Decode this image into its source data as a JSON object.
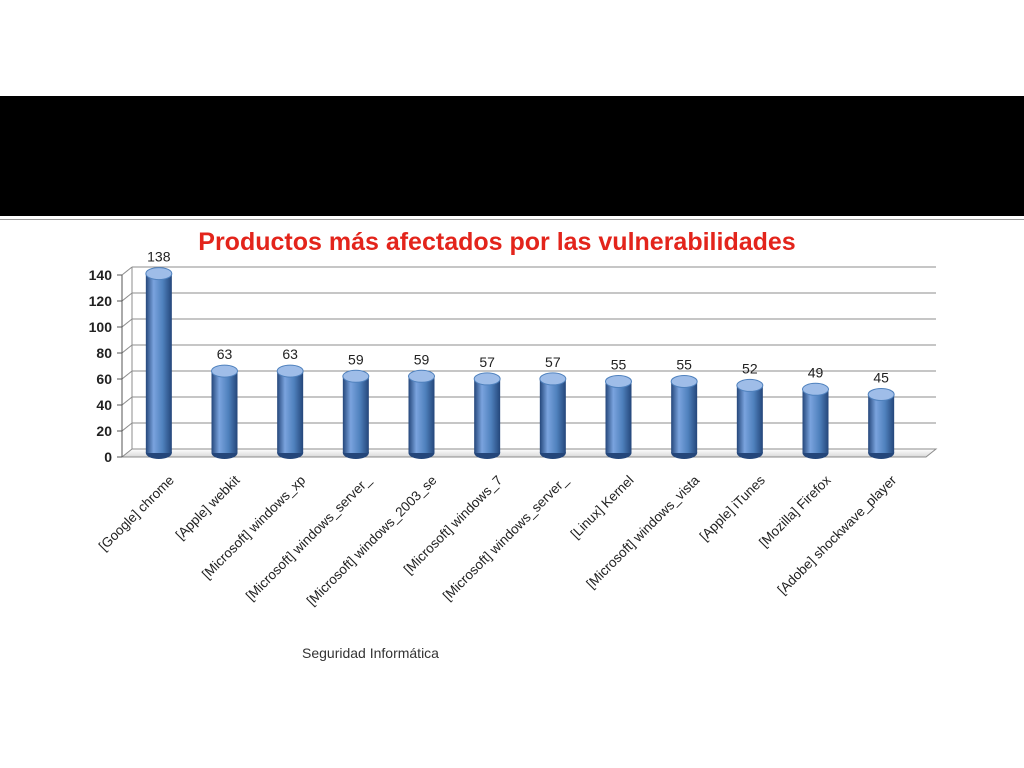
{
  "footer": {
    "text": "Seguridad Informática"
  },
  "chart_data": {
    "type": "bar",
    "title": "Productos más afectados por las vulnerabilidades",
    "xlabel": "",
    "ylabel": "",
    "ylim": [
      0,
      140
    ],
    "yticks": [
      0,
      20,
      40,
      60,
      80,
      100,
      120,
      140
    ],
    "grid": true,
    "legend": "none",
    "style": "3d-cylinder",
    "categories": [
      "[Google] chrome",
      "[Apple] webkit",
      "[Microsoft] windows_xp",
      "[Microsoft] windows_server_",
      "[Microsoft] windows_2003_se",
      "[Microsoft] windows_7",
      "[Microsoft] windows_server_",
      "[Linux] Kernel",
      "[Microsoft] windows_vista",
      "[Apple] iTunes",
      "[Mozilla] Firefox",
      "[Adobe] shockwave_player"
    ],
    "values": [
      138,
      63,
      63,
      59,
      59,
      57,
      57,
      55,
      55,
      52,
      49,
      45
    ],
    "colors": {
      "title": "#e3241b",
      "bar_light": "#7aa3de",
      "bar_mid": "#4f81bd",
      "bar_dark": "#24467a",
      "bar_top": "#9fbde8",
      "grid": "#8c8c8c"
    }
  }
}
